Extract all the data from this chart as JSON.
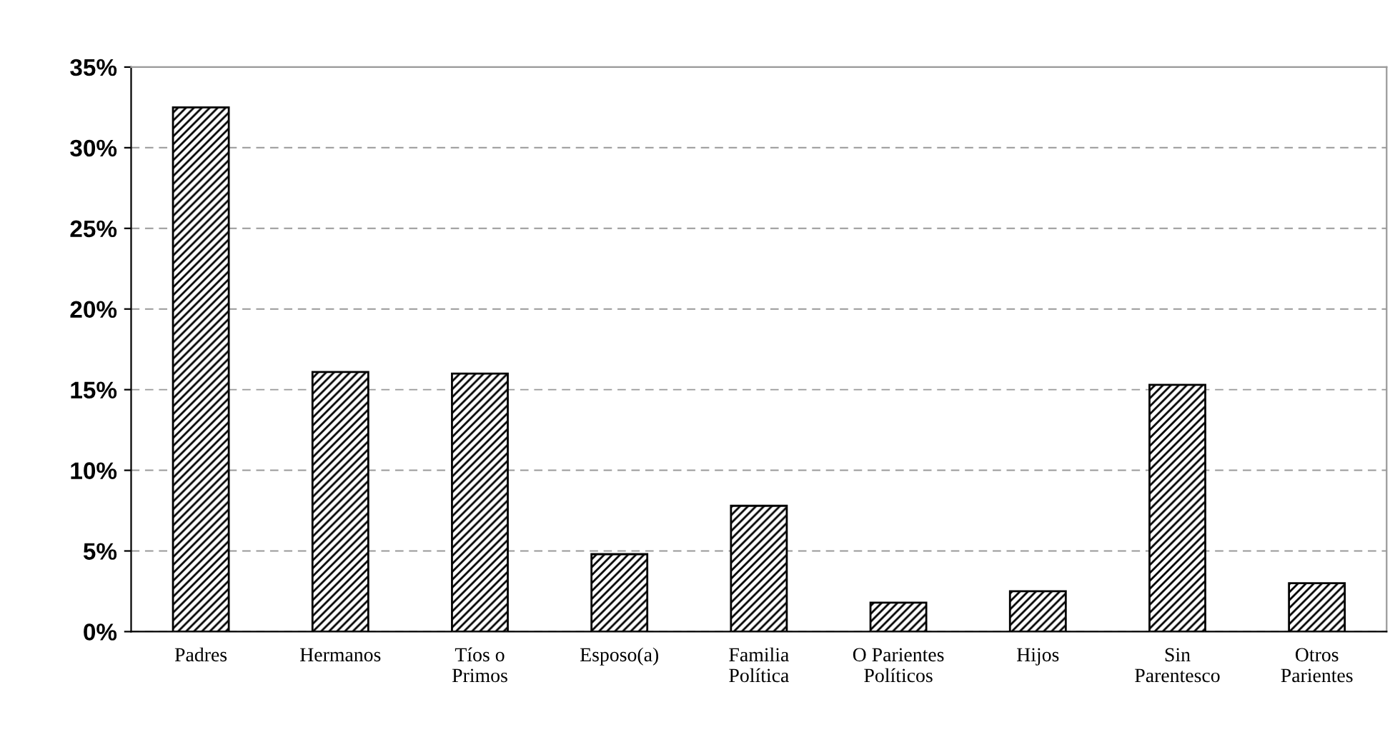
{
  "chart_data": {
    "type": "bar",
    "categories": [
      "Padres",
      "Hermanos",
      "Tíos o\nPrimos",
      "Esposo(a)",
      "Familia\nPolítica",
      "O Parientes\nPolíticos",
      "Hijos",
      "Sin\nParentesco",
      "Otros\nParientes"
    ],
    "values": [
      32.5,
      16.1,
      16.0,
      4.8,
      7.8,
      1.8,
      2.5,
      15.3,
      3.0
    ],
    "color": "#000000",
    "ylim": [
      0,
      35
    ],
    "yticks": [
      {
        "value": 0,
        "label": "0%"
      },
      {
        "value": 5,
        "label": "5%"
      },
      {
        "value": 10,
        "label": "10%"
      },
      {
        "value": 15,
        "label": "15%"
      },
      {
        "value": 20,
        "label": "20%"
      },
      {
        "value": 25,
        "label": "25%"
      },
      {
        "value": 30,
        "label": "30%"
      },
      {
        "value": 35,
        "label": "35%"
      }
    ],
    "grid": "y"
  }
}
